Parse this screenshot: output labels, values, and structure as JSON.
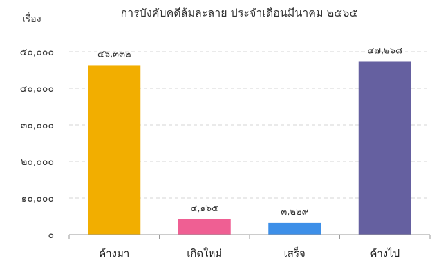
{
  "chart_data": {
    "type": "bar",
    "title": "การบังคับคดีล้มละลาย ประจำเดือนมีนาคม ๒๕๖๕",
    "ylabel": "เรื่อง",
    "xlabel": "",
    "categories": [
      "ค้างมา",
      "เกิดใหม่",
      "เสร็จ",
      "ค้างไป"
    ],
    "values": [
      46332,
      4165,
      3229,
      47268
    ],
    "data_labels": [
      "๔๖,๓๓๒",
      "๔,๑๖๕",
      "๓,๒๒๙",
      "๔๗,๒๖๘"
    ],
    "colors": [
      "#f2ae00",
      "#ef5f93",
      "#3d8fe8",
      "#6560a0"
    ],
    "ylim": [
      0,
      50000
    ],
    "yticks": [
      0,
      10000,
      20000,
      30000,
      40000,
      50000
    ],
    "ytick_labels": [
      "๐",
      "๑๐,๐๐๐",
      "๒๐,๐๐๐",
      "๓๐,๐๐๐",
      "๔๐,๐๐๐",
      "๕๐,๐๐๐"
    ],
    "grid": true,
    "legend": "none"
  }
}
